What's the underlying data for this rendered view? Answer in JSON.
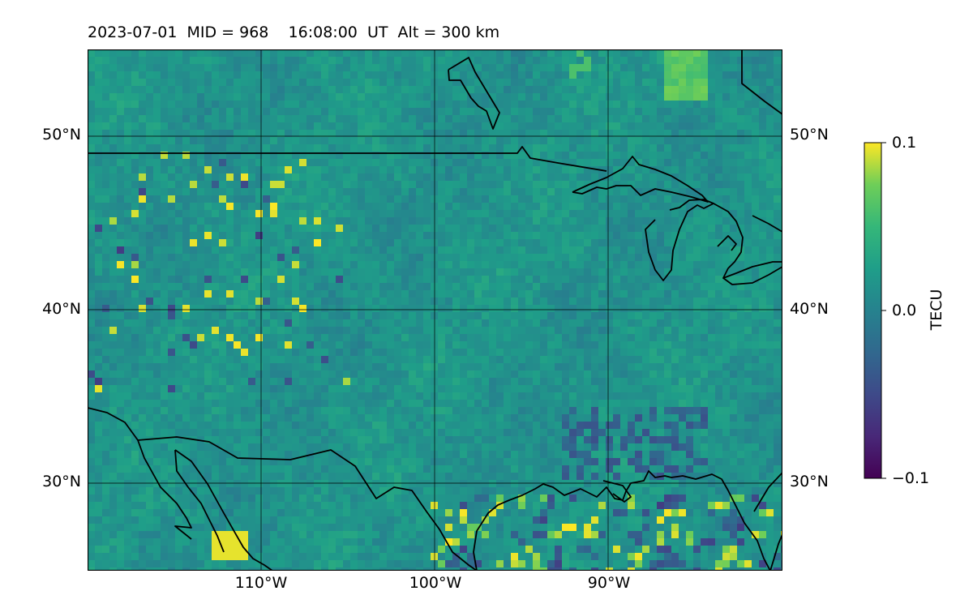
{
  "title": "2023-07-01  MID = 968    16:08:00  UT  Alt = 300 km",
  "map": {
    "extent": {
      "lon_min": -120,
      "lon_max": -80,
      "lat_min": 25,
      "lat_max": 55
    },
    "lat_gridlines": [
      30,
      40,
      50
    ],
    "lon_gridlines": [
      -110,
      -100,
      -90
    ],
    "lat_labels": {
      "30": "30°N",
      "40": "40°N",
      "50": "50°N"
    },
    "lon_labels": {
      "-110": "110°W",
      "-100": "100°W",
      "-90": "90°W"
    },
    "lat_labels_shown_both_sides": true,
    "colormap": "viridis",
    "coastlines": true,
    "borders": true,
    "data_field": "TEC perturbation (dTEC) grid, values roughly -0.1 to 0.1 TECU; mostly near 0.02 with positive yellow patches in NW and over Gulf/Texas coast, negative purple patches over Gulf and southeast"
  },
  "colorbar": {
    "label": "TECU",
    "vmin": -0.1,
    "vmax": 0.1,
    "ticks": [
      {
        "value": 0.1,
        "label": "0.1"
      },
      {
        "value": 0.0,
        "label": "0.0"
      },
      {
        "value": -0.1,
        "label": "−0.1"
      }
    ]
  }
}
